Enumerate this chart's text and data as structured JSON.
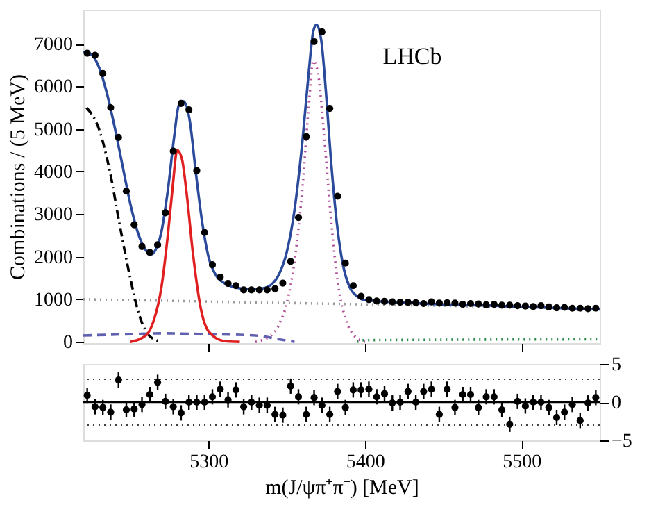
{
  "chart_data": [
    {
      "type": "scatter",
      "ylabel": "Combinations / (5 MeV)",
      "xlim": [
        5220,
        5550
      ],
      "xticks": [
        5300,
        5400,
        5500
      ],
      "ylim": [
        -30,
        7800
      ],
      "yticks": [
        0,
        1000,
        2000,
        3000,
        4000,
        5000,
        6000,
        7000
      ],
      "tick_labels": "y",
      "grid": false,
      "annotations": [
        "LHCb"
      ],
      "series": [
        {
          "type": "line",
          "color": "#999999",
          "line_style": "dotted",
          "x": [
            5220,
            5400,
            5550
          ],
          "values": [
            1000,
            880,
            780
          ]
        },
        {
          "type": "line",
          "color": "#6060b0",
          "line_style": "dashed",
          "x": [
            5220,
            5250,
            5270,
            5300,
            5330,
            5345,
            5355
          ],
          "values": [
            150,
            180,
            200,
            180,
            150,
            60,
            0
          ]
        },
        {
          "type": "line",
          "color": "#2a8a4a",
          "line_style": "dotted",
          "x": [
            5395,
            5400,
            5550
          ],
          "values": [
            0,
            40,
            60
          ]
        },
        {
          "type": "line",
          "color": "#000000",
          "line_style": "dashdot",
          "x": [
            5222,
            5230,
            5237,
            5243,
            5250,
            5256,
            5262,
            5270
          ],
          "values": [
            5500,
            5000,
            4000,
            2800,
            1500,
            600,
            150,
            0
          ]
        },
        {
          "type": "line",
          "color": "#e02020",
          "line_style": "solid",
          "x": [
            5250,
            5260,
            5265,
            5270,
            5274,
            5277,
            5280,
            5283,
            5286,
            5290,
            5295,
            5300,
            5310,
            5320
          ],
          "values": [
            0,
            150,
            500,
            1300,
            2500,
            3600,
            4500,
            4300,
            3500,
            2100,
            800,
            250,
            20,
            0
          ]
        },
        {
          "type": "line",
          "color": "#b0509a",
          "line_style": "dotted",
          "x": [
            5330,
            5340,
            5345,
            5350,
            5355,
            5360,
            5364,
            5367,
            5370,
            5374,
            5378,
            5383,
            5388,
            5393,
            5400
          ],
          "values": [
            0,
            150,
            400,
            900,
            1900,
            3600,
            5500,
            6600,
            6300,
            4800,
            3000,
            1300,
            500,
            150,
            0
          ]
        },
        {
          "type": "line",
          "color": "#2b4a9b",
          "line_style": "solid",
          "x": [
            5220,
            5225,
            5230,
            5235,
            5240,
            5245,
            5250,
            5255,
            5260,
            5263,
            5266,
            5270,
            5274,
            5278,
            5281,
            5284,
            5288,
            5292,
            5296,
            5300,
            5305,
            5310,
            5315,
            5320,
            5325,
            5330,
            5335,
            5340,
            5345,
            5350,
            5355,
            5360,
            5364,
            5367,
            5369,
            5372,
            5375,
            5378,
            5382,
            5386,
            5390,
            5395,
            5400,
            5420,
            5450,
            5480,
            5510,
            5550
          ],
          "values": [
            6800,
            6750,
            6450,
            5850,
            5050,
            4150,
            3250,
            2550,
            2150,
            2050,
            2150,
            2600,
            3550,
            4800,
            5550,
            5650,
            5200,
            3950,
            2800,
            2000,
            1550,
            1380,
            1300,
            1260,
            1240,
            1240,
            1260,
            1340,
            1580,
            2100,
            3100,
            4700,
            6300,
            7300,
            7450,
            7100,
            5900,
            4400,
            2800,
            1800,
            1300,
            1070,
            980,
            930,
            880,
            850,
            810,
            760
          ]
        },
        {
          "type": "scatter",
          "color": "#000000",
          "marker": "circle",
          "x": [
            5222.5,
            5227.5,
            5232.5,
            5237.5,
            5242.5,
            5247.5,
            5252.5,
            5257.5,
            5262.5,
            5267.5,
            5272.5,
            5277.5,
            5282.5,
            5287.5,
            5292.5,
            5297.5,
            5302.5,
            5307.5,
            5312.5,
            5317.5,
            5322.5,
            5327.5,
            5332.5,
            5337.5,
            5342.5,
            5347.5,
            5352.5,
            5357.5,
            5362.5,
            5367.5,
            5372.5,
            5377.5,
            5382.5,
            5387.5,
            5392.5,
            5397.5,
            5402.5,
            5407.5,
            5412.5,
            5417.5,
            5422.5,
            5427.5,
            5432.5,
            5437.5,
            5442.5,
            5447.5,
            5452.5,
            5457.5,
            5462.5,
            5467.5,
            5472.5,
            5477.5,
            5482.5,
            5487.5,
            5492.5,
            5497.5,
            5502.5,
            5507.5,
            5512.5,
            5517.5,
            5522.5,
            5527.5,
            5532.5,
            5537.5,
            5542.5,
            5547.5
          ],
          "values": [
            6780,
            6730,
            6300,
            5500,
            4800,
            3540,
            2750,
            2240,
            2100,
            2280,
            3030,
            4480,
            5600,
            5450,
            4020,
            2570,
            1810,
            1520,
            1370,
            1320,
            1220,
            1220,
            1220,
            1220,
            1250,
            1380,
            1890,
            2920,
            4820,
            7050,
            7280,
            5480,
            3420,
            1850,
            1320,
            1070,
            990,
            960,
            950,
            940,
            930,
            930,
            920,
            900,
            940,
            910,
            920,
            910,
            880,
            900,
            890,
            870,
            880,
            860,
            860,
            850,
            840,
            830,
            850,
            820,
            800,
            810,
            790,
            790,
            780,
            790
          ]
        }
      ]
    },
    {
      "type": "scatter",
      "xlabel": "m(J/ψπ⁺π⁻) [MeV]",
      "xlim": [
        5220,
        5550
      ],
      "xticks": [
        5300,
        5400,
        5500
      ],
      "ylim": [
        -5,
        5
      ],
      "yticks": [
        -5,
        0,
        5
      ],
      "grid": false,
      "marker": "circle",
      "color": "#000000",
      "ref_lines": [
        {
          "axis": "y",
          "value": 3,
          "line_style": "dotted"
        },
        {
          "axis": "y",
          "value": 0,
          "line_style": "solid"
        },
        {
          "axis": "y",
          "value": -3,
          "line_style": "dotted"
        }
      ],
      "x": [
        5222.5,
        5227.5,
        5232.5,
        5237.5,
        5242.5,
        5247.5,
        5252.5,
        5257.5,
        5262.5,
        5267.5,
        5272.5,
        5277.5,
        5282.5,
        5287.5,
        5292.5,
        5297.5,
        5302.5,
        5307.5,
        5312.5,
        5317.5,
        5322.5,
        5327.5,
        5332.5,
        5337.5,
        5342.5,
        5347.5,
        5352.5,
        5357.5,
        5362.5,
        5367.5,
        5372.5,
        5377.5,
        5382.5,
        5387.5,
        5392.5,
        5397.5,
        5402.5,
        5407.5,
        5412.5,
        5417.5,
        5422.5,
        5427.5,
        5432.5,
        5437.5,
        5442.5,
        5447.5,
        5452.5,
        5457.5,
        5462.5,
        5467.5,
        5472.5,
        5477.5,
        5482.5,
        5487.5,
        5492.5,
        5497.5,
        5502.5,
        5507.5,
        5512.5,
        5517.5,
        5522.5,
        5527.5,
        5532.5,
        5537.5,
        5542.5,
        5547.5
      ],
      "values": [
        0.9,
        -0.6,
        -0.7,
        -1.3,
        2.9,
        -1.0,
        -0.9,
        -0.3,
        1.0,
        2.6,
        0.1,
        -0.6,
        -1.4,
        0,
        0,
        0,
        0.7,
        1.7,
        0.3,
        1.6,
        -0.6,
        0,
        -0.4,
        -0.4,
        -1.6,
        -1.7,
        2.1,
        0.7,
        -1.6,
        0.6,
        -0.4,
        -1.6,
        1.4,
        -0.7,
        1.6,
        1.6,
        1.7,
        0.7,
        1.1,
        -0.1,
        0,
        1.4,
        0,
        1.4,
        1.7,
        -1.6,
        1.7,
        -0.7,
        1.0,
        1.0,
        -0.7,
        0.7,
        0.7,
        -1.0,
        -2.9,
        0.1,
        -0.5,
        0,
        0,
        -0.7,
        -2.0,
        -1.3,
        -0.3,
        -2.4,
        -0.1,
        0.6
      ],
      "errors": [
        1,
        1,
        1,
        1,
        1,
        1,
        1,
        1,
        1,
        1,
        1,
        1,
        1,
        1,
        1,
        1,
        1,
        1,
        1,
        1,
        1,
        1,
        1,
        1,
        1,
        1,
        1,
        1,
        1,
        1,
        1,
        1,
        1,
        1,
        1,
        1,
        1,
        1,
        1,
        1,
        1,
        1,
        1,
        1,
        1,
        1,
        1,
        1,
        1,
        1,
        1,
        1,
        1,
        1,
        1,
        1,
        1,
        1,
        1,
        1,
        1,
        1,
        1,
        1,
        1,
        1
      ]
    }
  ]
}
